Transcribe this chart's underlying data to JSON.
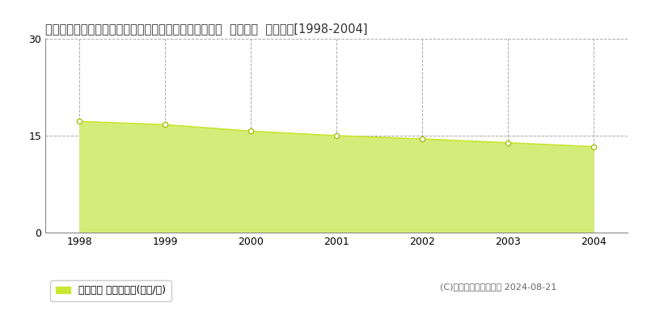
{
  "title": "埼玉県北葛飾郡松伏町大字大川戸字砂田１００２番１外  地価公示  地価推移[1998-2004]",
  "years": [
    1998,
    1999,
    2000,
    2001,
    2002,
    2003,
    2004
  ],
  "values": [
    17.2,
    16.7,
    15.7,
    15.0,
    14.5,
    13.9,
    13.3
  ],
  "ylim": [
    0,
    30
  ],
  "yticks": [
    0,
    15,
    30
  ],
  "line_color": "#c8e632",
  "fill_color": "#d4ed7a",
  "marker_color": "white",
  "marker_edge_color": "#a8c010",
  "background_color": "#ffffff",
  "grid_color": "#aaaaaa",
  "legend_label": "地価公示 平均坪単価(万円/坪)",
  "legend_square_color": "#c8e632",
  "copyright_text": "(C)土地価格ドットコム 2024-08-21",
  "title_fontsize": 10.5,
  "axis_fontsize": 9,
  "legend_fontsize": 9,
  "copyright_fontsize": 8
}
